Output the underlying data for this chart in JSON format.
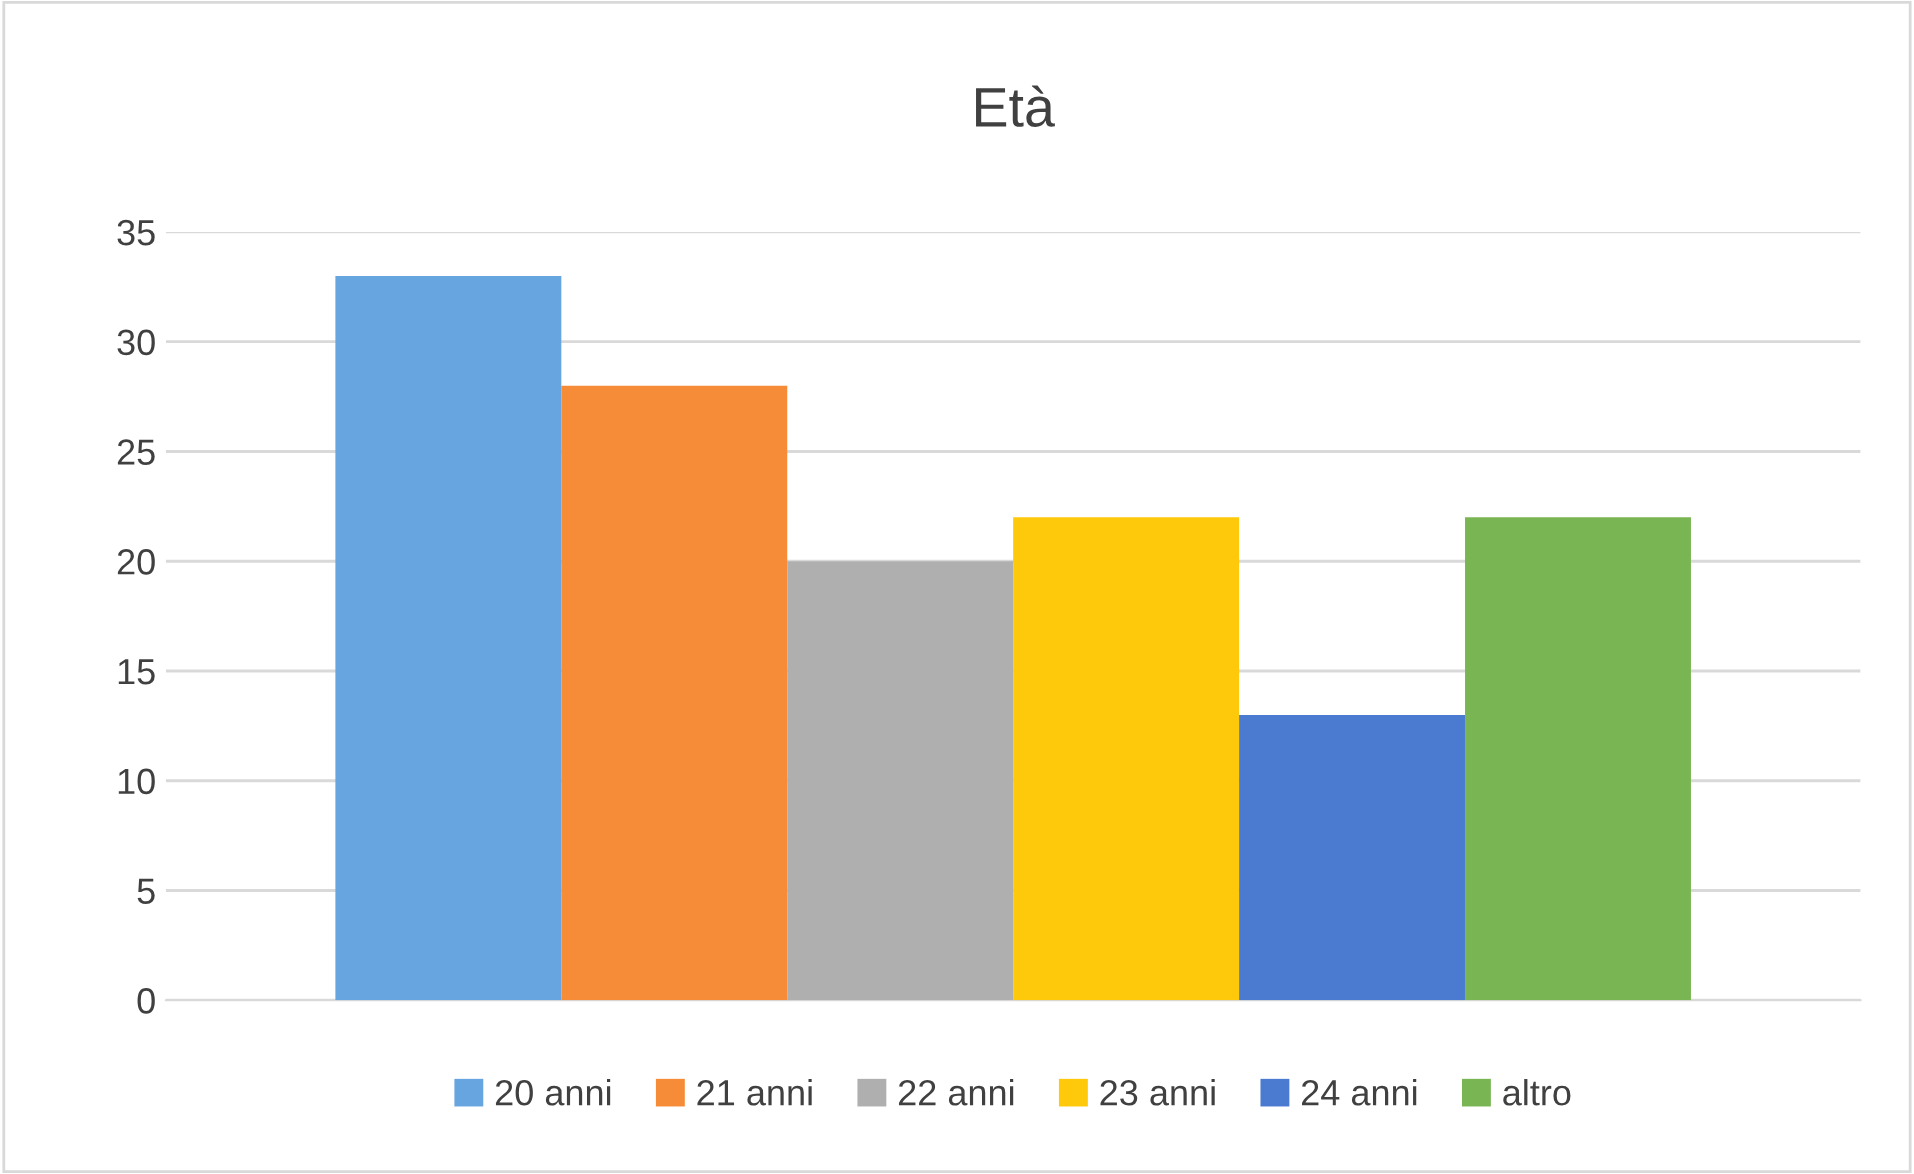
{
  "chart_data": {
    "type": "bar",
    "title": "Età",
    "categories": [
      null
    ],
    "series": [
      {
        "name": "20 anni",
        "color": "#67a5e0",
        "values": [
          33
        ]
      },
      {
        "name": "21 anni",
        "color": "#f68b38",
        "values": [
          28
        ]
      },
      {
        "name": "22 anni",
        "color": "#afafaf",
        "values": [
          20
        ]
      },
      {
        "name": "23 anni",
        "color": "#fec90b",
        "values": [
          22
        ]
      },
      {
        "name": "24 anni",
        "color": "#4b7bd0",
        "values": [
          13
        ]
      },
      {
        "name": "altro",
        "color": "#79b653",
        "values": [
          22
        ]
      }
    ],
    "ylim": [
      0,
      35
    ],
    "yticks": [
      0,
      5,
      10,
      15,
      20,
      25,
      30,
      35
    ],
    "grid": "y",
    "legend": "bottom",
    "tick_labels": "y"
  }
}
